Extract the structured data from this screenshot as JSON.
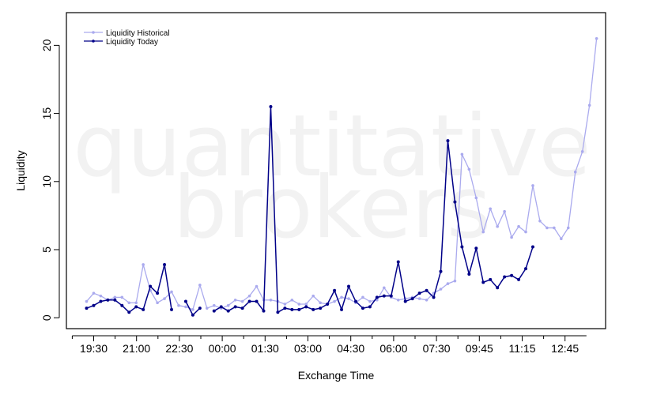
{
  "chart_data": {
    "type": "line",
    "title": "",
    "xlabel": "Exchange Time",
    "ylabel": "Liquidity",
    "watermark": [
      "quantitative",
      "brokers"
    ],
    "x_tick_labels": [
      "19:30",
      "21:00",
      "22:30",
      "00:00",
      "01:30",
      "03:00",
      "04:30",
      "06:00",
      "07:30",
      "09:45",
      "11:15",
      "12:45"
    ],
    "y_ticks": [
      0,
      5,
      10,
      15,
      20
    ],
    "ylim": [
      -0.8,
      22.4
    ],
    "grid": false,
    "legend_position": "top-left",
    "series": [
      {
        "name": "Liquidity Historical",
        "color": "#aaaaee",
        "values": [
          1.2,
          1.8,
          1.6,
          1.3,
          1.5,
          1.5,
          1.1,
          1.1,
          3.9,
          2.0,
          1.1,
          1.4,
          1.9,
          0.9,
          0.8,
          0.6,
          2.4,
          0.7,
          0.9,
          0.7,
          0.9,
          1.3,
          1.2,
          1.6,
          2.3,
          1.3,
          1.3,
          1.2,
          1.0,
          1.3,
          1.0,
          1.0,
          1.6,
          1.1,
          1.0,
          1.2,
          1.5,
          1.4,
          1.1,
          1.5,
          1.2,
          1.3,
          2.2,
          1.5,
          1.3,
          1.4,
          1.5,
          1.4,
          1.3,
          1.8,
          2.1,
          2.5,
          2.7,
          12.0,
          10.9,
          8.8,
          6.3,
          8.0,
          6.7,
          7.8,
          5.9,
          6.7,
          6.3,
          9.7,
          7.1,
          6.6,
          6.6,
          5.8,
          6.6,
          10.7,
          12.2,
          15.6,
          20.5
        ]
      },
      {
        "name": "Liquidity Today",
        "color": "#000088",
        "values": [
          0.7,
          0.9,
          1.2,
          1.3,
          1.3,
          0.9,
          0.4,
          0.8,
          0.6,
          2.3,
          1.8,
          3.9,
          0.6,
          null,
          1.2,
          0.2,
          0.7,
          null,
          0.5,
          0.8,
          0.5,
          0.8,
          0.7,
          1.2,
          1.2,
          0.5,
          15.5,
          0.4,
          0.7,
          0.6,
          0.6,
          0.8,
          0.6,
          0.7,
          1.0,
          2.0,
          0.6,
          2.3,
          1.2,
          0.7,
          0.8,
          1.5,
          1.6,
          1.6,
          4.1,
          1.2,
          1.4,
          1.8,
          2.0,
          1.5,
          3.4,
          13.0,
          8.5,
          5.2,
          3.2,
          5.1,
          2.6,
          2.8,
          2.2,
          3.0,
          3.1,
          2.8,
          3.6,
          5.2
        ]
      }
    ]
  }
}
